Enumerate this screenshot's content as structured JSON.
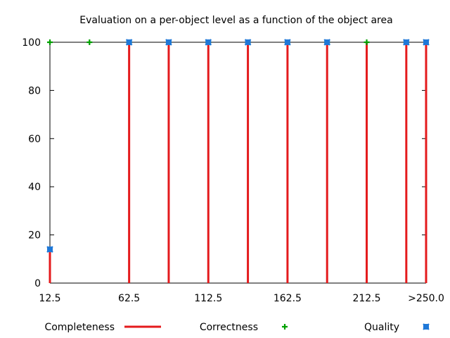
{
  "chart_data": {
    "type": "line",
    "title": "Evaluation on a per-object level as a function of the object area",
    "xlabel": "",
    "ylabel": "",
    "x_tick_labels": [
      "12.5",
      "62.5",
      "112.5",
      "162.5",
      "212.5",
      ">250.0"
    ],
    "x_tick_values": [
      12.5,
      62.5,
      112.5,
      162.5,
      212.5,
      250
    ],
    "xlim": [
      12.5,
      250
    ],
    "y_ticks": [
      0,
      20,
      40,
      60,
      80,
      100
    ],
    "ylim": [
      0,
      100
    ],
    "grid": false,
    "legend_position": "bottom",
    "series": [
      {
        "name": "Completeness",
        "style": "impulses",
        "color": "#e41a1c",
        "points": [
          {
            "x": 12.5,
            "y": 14
          },
          {
            "x": 62.5,
            "y": 100
          },
          {
            "x": 87.5,
            "y": 100
          },
          {
            "x": 112.5,
            "y": 100
          },
          {
            "x": 137.5,
            "y": 100
          },
          {
            "x": 162.5,
            "y": 100
          },
          {
            "x": 187.5,
            "y": 100
          },
          {
            "x": 212.5,
            "y": 100
          },
          {
            "x": 237.5,
            "y": 100
          },
          {
            "x": 250,
            "y": 100
          }
        ]
      },
      {
        "name": "Correctness",
        "style": "points-plus",
        "color": "#00a000",
        "points": [
          {
            "x": 12.5,
            "y": 100
          },
          {
            "x": 37.5,
            "y": 100
          },
          {
            "x": 62.5,
            "y": 100
          },
          {
            "x": 87.5,
            "y": 100
          },
          {
            "x": 112.5,
            "y": 100
          },
          {
            "x": 137.5,
            "y": 100
          },
          {
            "x": 162.5,
            "y": 100
          },
          {
            "x": 187.5,
            "y": 100
          },
          {
            "x": 212.5,
            "y": 100
          },
          {
            "x": 237.5,
            "y": 100
          },
          {
            "x": 250,
            "y": 100
          }
        ]
      },
      {
        "name": "Quality",
        "style": "points-x",
        "color": "#1e78d8",
        "points": [
          {
            "x": 12.5,
            "y": 14
          },
          {
            "x": 62.5,
            "y": 100
          },
          {
            "x": 87.5,
            "y": 100
          },
          {
            "x": 112.5,
            "y": 100
          },
          {
            "x": 137.5,
            "y": 100
          },
          {
            "x": 162.5,
            "y": 100
          },
          {
            "x": 187.5,
            "y": 100
          },
          {
            "x": 237.5,
            "y": 100
          },
          {
            "x": 250,
            "y": 100
          }
        ]
      }
    ]
  }
}
